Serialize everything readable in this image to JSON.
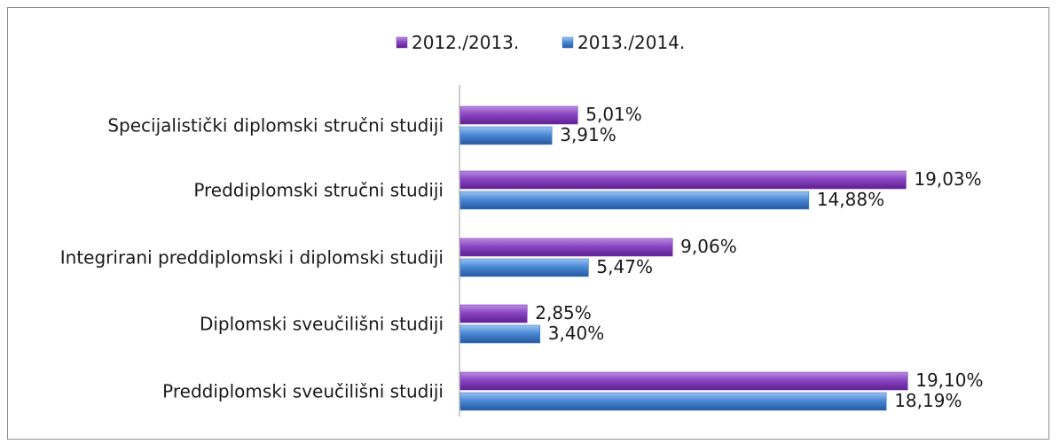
{
  "chart_data": {
    "type": "bar",
    "orientation": "horizontal",
    "categories": [
      "Specijalistički diplomski stručni studiji",
      "Preddiplomski stručni studiji",
      "Integrirani preddiplomski i diplomski studiji",
      "Diplomski sveučilišni studiji",
      "Preddiplomski sveučilišni studiji"
    ],
    "series": [
      {
        "name": "2012./2013.",
        "color": "#7e36b5",
        "values": [
          5.01,
          19.03,
          9.06,
          2.85,
          19.1
        ],
        "labels": [
          "5,01%",
          "19,03%",
          "9,06%",
          "2,85%",
          "19,10%"
        ]
      },
      {
        "name": "2013./2014.",
        "color": "#3f7fd0",
        "values": [
          3.91,
          14.88,
          5.47,
          3.4,
          18.19
        ],
        "labels": [
          "3,91%",
          "14,88%",
          "5,47%",
          "3,40%",
          "18,19%"
        ]
      }
    ],
    "xlim": [
      0,
      20
    ],
    "legend_position": "top",
    "grid": false,
    "title": "",
    "xlabel": "",
    "ylabel": ""
  }
}
